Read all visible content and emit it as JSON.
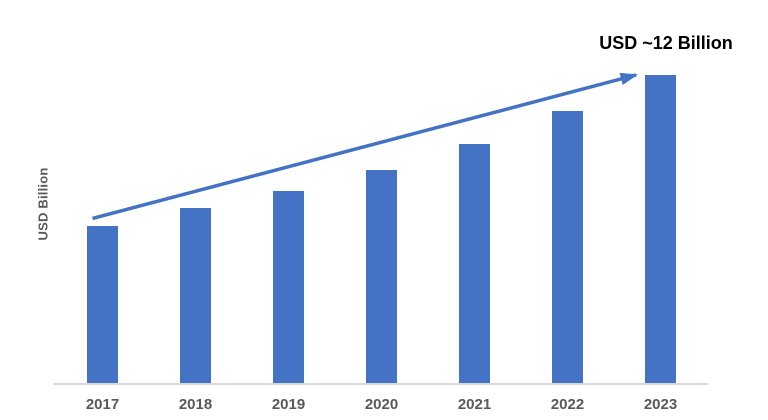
{
  "chart_data": {
    "type": "bar",
    "title": "",
    "categories": [
      "2017",
      "2018",
      "2019",
      "2020",
      "2021",
      "2022",
      "2023"
    ],
    "values": [
      6.1,
      6.8,
      7.5,
      8.3,
      9.3,
      10.6,
      12.0
    ],
    "xlabel": "",
    "ylabel": "USD Billion",
    "ylim": [
      0,
      12.6
    ],
    "grid": false,
    "legend": false,
    "bar_color": "#4472C4",
    "axis_line_color": "#D9D9D9",
    "tick_label_color": "#595959",
    "ylabel_color": "#595959",
    "annotation": {
      "text": "USD ~12 Billion",
      "color": "#000000",
      "refers_to_category": "2023"
    },
    "trend_arrow": {
      "color": "#4472C4",
      "from_category": "2017",
      "to_category": "2023"
    }
  }
}
